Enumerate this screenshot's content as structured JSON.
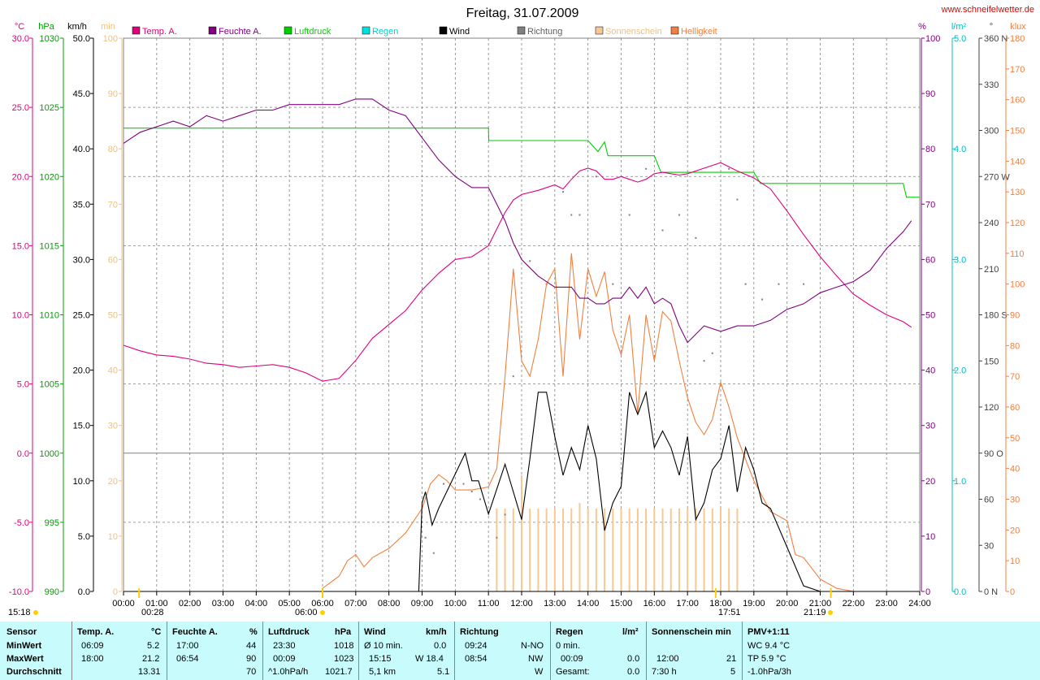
{
  "title": "Freitag, 31.07.2009",
  "website": "www.schneifelwetter.de",
  "legend": [
    {
      "label": "Temp. A.",
      "color": "#e0007f"
    },
    {
      "label": "Feuchte A.",
      "color": "#800080"
    },
    {
      "label": "Luftdruck",
      "color": "#00d000"
    },
    {
      "label": "Regen",
      "color": "#00e0e0"
    },
    {
      "label": "Wind",
      "color": "#000000"
    },
    {
      "label": "Richtung",
      "color": "#808080"
    },
    {
      "label": "Sonnenschein",
      "color": "#f8c890"
    },
    {
      "label": "Helligkeit",
      "color": "#f08040"
    }
  ],
  "axes_labels": {
    "temp_unit": "°C",
    "pressure_unit": "hPa",
    "wind_unit": "km/h",
    "sun_unit": "min",
    "humidity_unit": "%",
    "rain_unit": "l/m²",
    "dir_unit": "°",
    "lux_unit": "klux"
  },
  "sun_markers": {
    "sunrise_label": "06:00",
    "sunset_label": "21:19",
    "t1": "00:28",
    "t2": "17:51",
    "now": "15:18"
  },
  "stats": {
    "sensor": {
      "head": "Sensor",
      "min": "MinWert",
      "max": "MaxWert",
      "avg": "Durchschnitt"
    },
    "temp": {
      "head": "Temp. A.",
      "unit": "°C",
      "min_time": "06:09",
      "min_val": "5.2",
      "max_time": "18:00",
      "max_val": "21.2",
      "avg": "13.31"
    },
    "hum": {
      "head": "Feuchte A.",
      "unit": "%",
      "min_time": "17:00",
      "min_val": "44",
      "max_time": "06:54",
      "max_val": "90",
      "avg": "70"
    },
    "press": {
      "head": "Luftdruck",
      "unit": "hPa",
      "min_time": "23:30",
      "min_val": "1018",
      "max_time": "00:09",
      "max_val": "1023",
      "trend": "^1.0hPa/h",
      "avg": "1021.7"
    },
    "wind": {
      "head": "Wind",
      "unit": "km/h",
      "min_lbl": "Ø 10 min.",
      "min_val": "0.0",
      "max_time": "15:15",
      "max_val": "W 18.4",
      "dist": "5,1 km",
      "avg": "5.1"
    },
    "dir": {
      "head": "Richtung",
      "min_time": "09:24",
      "min_val": "N-NO",
      "max_time": "08:54",
      "max_val": "NW",
      "avg": "W"
    },
    "rain": {
      "head": "Regen",
      "unit": "l/m²",
      "min_lbl": "0 min.",
      "max_time": "00:09",
      "max_val": "0.0",
      "total_lbl": "Gesamt:",
      "total": "0.0"
    },
    "sun": {
      "head": "Sonnenschein min",
      "max_time": "12:00",
      "max_val": "21",
      "avg_lbl": "7:30 h",
      "avg": "5"
    },
    "pmv": {
      "head": "PMV+1:11",
      "wc": "WC 9.4 °C",
      "tp": "TP 5.9 °C",
      "trend": "-1.0hPa/3h"
    }
  },
  "chart_data": {
    "type": "line",
    "title": "Freitag, 31.07.2009",
    "xlim": [
      0,
      24
    ],
    "x_ticks": [
      "00:00",
      "01:00",
      "02:00",
      "03:00",
      "04:00",
      "05:00",
      "06:00",
      "07:00",
      "08:00",
      "09:00",
      "10:00",
      "11:00",
      "12:00",
      "13:00",
      "14:00",
      "15:00",
      "16:00",
      "17:00",
      "18:00",
      "19:00",
      "20:00",
      "21:00",
      "22:00",
      "23:00",
      "24:00"
    ],
    "axes": {
      "temp": {
        "range": [
          -10,
          30
        ],
        "ticks": [
          "30.0",
          "25.0",
          "20.0",
          "15.0",
          "10.0",
          "5.0",
          "0.0",
          "-5.0",
          "-10.0"
        ]
      },
      "pressure": {
        "range": [
          990,
          1030
        ],
        "ticks": [
          "1030",
          "1025",
          "1020",
          "1015",
          "1010",
          "1005",
          "1000",
          "995",
          "990"
        ]
      },
      "wind": {
        "range": [
          0,
          50
        ],
        "ticks": [
          "50.0",
          "45.0",
          "40.0",
          "35.0",
          "30.0",
          "25.0",
          "20.0",
          "15.0",
          "10.0",
          "5.0",
          "0.0"
        ]
      },
      "sun": {
        "range": [
          0,
          100
        ],
        "ticks": [
          "100",
          "90",
          "80",
          "70",
          "60",
          "50",
          "40",
          "30",
          "20",
          "10",
          "0"
        ]
      },
      "humidity": {
        "range": [
          0,
          100
        ],
        "ticks": [
          "100",
          "90",
          "80",
          "70",
          "60",
          "50",
          "40",
          "30",
          "20",
          "10",
          "0"
        ]
      },
      "rain": {
        "range": [
          0,
          5
        ],
        "ticks": [
          "5.0",
          "4.0",
          "3.0",
          "2.0",
          "1.0",
          "0.0"
        ]
      },
      "direction": {
        "range": [
          0,
          360
        ],
        "ticks": [
          "360 N",
          "330",
          "300",
          "270 W",
          "240",
          "210",
          "180 S",
          "150",
          "120",
          "90 O",
          "60",
          "30",
          "0 N"
        ]
      },
      "lux": {
        "range": [
          0,
          180
        ],
        "ticks": [
          "180",
          "170",
          "160",
          "150",
          "140",
          "130",
          "120",
          "110",
          "100",
          "90",
          "80",
          "70",
          "60",
          "50",
          "40",
          "30",
          "20",
          "10",
          "0"
        ]
      }
    },
    "series": [
      {
        "name": "Temp. A.",
        "axis": "temp",
        "color": "#e0007f",
        "x": [
          0,
          0.5,
          1,
          1.5,
          2,
          2.5,
          3,
          3.5,
          4,
          4.5,
          5,
          5.5,
          6,
          6.5,
          7,
          7.5,
          8,
          8.5,
          9,
          9.5,
          10,
          10.5,
          11,
          11.25,
          11.5,
          11.75,
          12,
          12.5,
          13,
          13.25,
          13.5,
          13.75,
          14,
          14.25,
          14.5,
          14.75,
          15,
          15.25,
          15.5,
          15.75,
          16,
          16.25,
          16.5,
          16.75,
          17,
          17.5,
          18,
          18.5,
          19,
          19.5,
          20,
          20.5,
          21,
          21.5,
          22,
          22.5,
          23,
          23.5,
          23.75
        ],
        "y": [
          7.8,
          7.4,
          7.1,
          7.0,
          6.8,
          6.5,
          6.4,
          6.2,
          6.3,
          6.4,
          6.2,
          5.8,
          5.2,
          5.4,
          6.7,
          8.3,
          9.3,
          10.3,
          11.8,
          13.0,
          14.0,
          14.2,
          15.0,
          16.2,
          17.4,
          18.3,
          18.7,
          19.0,
          19.4,
          19.1,
          19.8,
          20.4,
          20.6,
          20.4,
          19.8,
          19.8,
          20.0,
          19.8,
          19.6,
          19.8,
          20.2,
          20.3,
          20.2,
          20.1,
          20.2,
          20.6,
          21.0,
          20.4,
          19.9,
          19.1,
          17.5,
          15.8,
          14.2,
          12.8,
          11.5,
          10.7,
          10.0,
          9.5,
          9.1
        ]
      },
      {
        "name": "Feuchte A.",
        "axis": "humidity",
        "color": "#800080",
        "x": [
          0,
          0.5,
          1,
          1.5,
          2,
          2.5,
          3,
          3.5,
          4,
          4.5,
          5,
          5.5,
          6,
          6.5,
          7,
          7.5,
          8,
          8.5,
          9,
          9.5,
          10,
          10.5,
          11,
          11.25,
          11.5,
          11.75,
          12,
          12.5,
          13,
          13.25,
          13.5,
          13.75,
          14,
          14.25,
          14.5,
          14.75,
          15,
          15.25,
          15.5,
          15.75,
          16,
          16.25,
          16.5,
          16.75,
          17,
          17.5,
          18,
          18.5,
          19,
          19.5,
          20,
          20.5,
          21,
          21.5,
          22,
          22.5,
          23,
          23.5,
          23.75
        ],
        "y": [
          81,
          83,
          84,
          85,
          84,
          86,
          85,
          86,
          87,
          87,
          88,
          88,
          88,
          88,
          89,
          89,
          87,
          86,
          82,
          78,
          75,
          73,
          73,
          70,
          67,
          63,
          60,
          57,
          55,
          55,
          55,
          53,
          53,
          52,
          52,
          53,
          53,
          55,
          53,
          55,
          52,
          53,
          52,
          48,
          45,
          48,
          47,
          48,
          48,
          49,
          51,
          52,
          54,
          55,
          56,
          58,
          62,
          65,
          67
        ]
      },
      {
        "name": "Luftdruck",
        "axis": "pressure",
        "color": "#00d000",
        "x": [
          0,
          0.5,
          11,
          11.01,
          14,
          14.3,
          14.5,
          14.6,
          16,
          16.2,
          19,
          19.2,
          23.5,
          23.6,
          24
        ],
        "y": [
          1023.5,
          1023.5,
          1023.5,
          1022.6,
          1022.6,
          1021.8,
          1022.5,
          1021.5,
          1021.5,
          1020.3,
          1020.3,
          1019.5,
          1019.5,
          1018.5,
          1018.5
        ]
      },
      {
        "name": "Wind",
        "axis": "wind",
        "color": "#000000",
        "x": [
          0,
          8.9,
          9,
          9.1,
          9.3,
          9.5,
          9.9,
          10.3,
          10.5,
          10.7,
          11,
          11.5,
          11.75,
          12,
          12.25,
          12.5,
          12.75,
          13,
          13.25,
          13.5,
          13.75,
          14,
          14.25,
          14.5,
          14.75,
          15,
          15.25,
          15.5,
          15.75,
          16,
          16.25,
          16.5,
          16.75,
          17,
          17.25,
          17.5,
          17.75,
          18,
          18.25,
          18.5,
          18.75,
          19,
          19.25,
          19.5,
          20,
          20.5,
          21,
          21.5,
          22,
          24
        ],
        "y": [
          0,
          0,
          8,
          9,
          6,
          7.5,
          10,
          12.5,
          10,
          10,
          7,
          11.5,
          9,
          6.5,
          12,
          18,
          18,
          14,
          10.5,
          13,
          11,
          15,
          12,
          5.5,
          8,
          9.5,
          18,
          16,
          18,
          13,
          14.5,
          13,
          10.5,
          14,
          6.5,
          8,
          11,
          12,
          15,
          9,
          13,
          11,
          8,
          7.5,
          4,
          0.5,
          0,
          0,
          0,
          0
        ]
      },
      {
        "name": "Helligkeit",
        "axis": "lux",
        "color": "#f08040",
        "x": [
          6,
          6.5,
          6.75,
          7,
          7.25,
          7.5,
          8,
          8.5,
          9,
          9.25,
          9.5,
          9.75,
          10,
          10.5,
          11,
          11.25,
          11.5,
          11.75,
          12,
          12.25,
          12.5,
          12.75,
          13,
          13.25,
          13.5,
          13.75,
          14,
          14.25,
          14.5,
          14.75,
          15,
          15.25,
          15.5,
          15.75,
          16,
          16.25,
          16.5,
          16.75,
          17,
          17.25,
          17.5,
          17.75,
          18,
          18.25,
          18.5,
          19,
          19.5,
          20,
          20.25,
          20.5,
          21,
          21.5,
          22
        ],
        "y": [
          1,
          5,
          10,
          12,
          8,
          11,
          14,
          19,
          27,
          35,
          38,
          36,
          33,
          33,
          34,
          40,
          70,
          105,
          75,
          70,
          82,
          100,
          105,
          70,
          110,
          82,
          105,
          96,
          104,
          85,
          77,
          90,
          58,
          90,
          75,
          91,
          88,
          75,
          63,
          55,
          51,
          56,
          68,
          60,
          50,
          36,
          26,
          23,
          12,
          11,
          4,
          1,
          0
        ]
      },
      {
        "name": "Sonnenschein",
        "axis": "sun",
        "color": "#f8c890",
        "type": "bar",
        "x": [
          11.25,
          11.5,
          11.75,
          12,
          12.25,
          12.5,
          12.75,
          13,
          13.25,
          13.5,
          13.75,
          14,
          14.25,
          14.5,
          14.75,
          15,
          15.25,
          15.5,
          15.75,
          16,
          16.25,
          16.5,
          16.75,
          17,
          17.25,
          17.5,
          17.75,
          18,
          18.25,
          18.5
        ],
        "y": [
          15,
          15,
          15,
          21,
          15,
          15,
          15,
          15,
          15,
          15,
          16,
          15,
          15,
          15,
          15,
          15,
          15,
          15,
          15,
          15,
          15,
          15,
          15,
          15,
          15,
          15,
          15,
          15,
          15,
          15
        ]
      },
      {
        "name": "Richtung",
        "axis": "direction",
        "color": "#808080",
        "type": "scatter",
        "x": [
          9.1,
          9.35,
          9.65,
          10.25,
          10.5,
          10.75,
          11.25,
          11.5,
          11.75,
          12.25,
          12.75,
          13.25,
          13.5,
          13.75,
          14.25,
          14.75,
          15.25,
          15.75,
          16.25,
          16.75,
          17.25,
          17.5,
          17.75,
          18.25,
          18.5,
          18.75,
          19.25,
          19.75,
          20.5
        ],
        "y": [
          35,
          25,
          70,
          70,
          65,
          60,
          35,
          50,
          140,
          215,
          200,
          260,
          245,
          245,
          270,
          200,
          245,
          275,
          235,
          245,
          230,
          150,
          155,
          275,
          255,
          200,
          190,
          200,
          200
        ]
      }
    ]
  }
}
